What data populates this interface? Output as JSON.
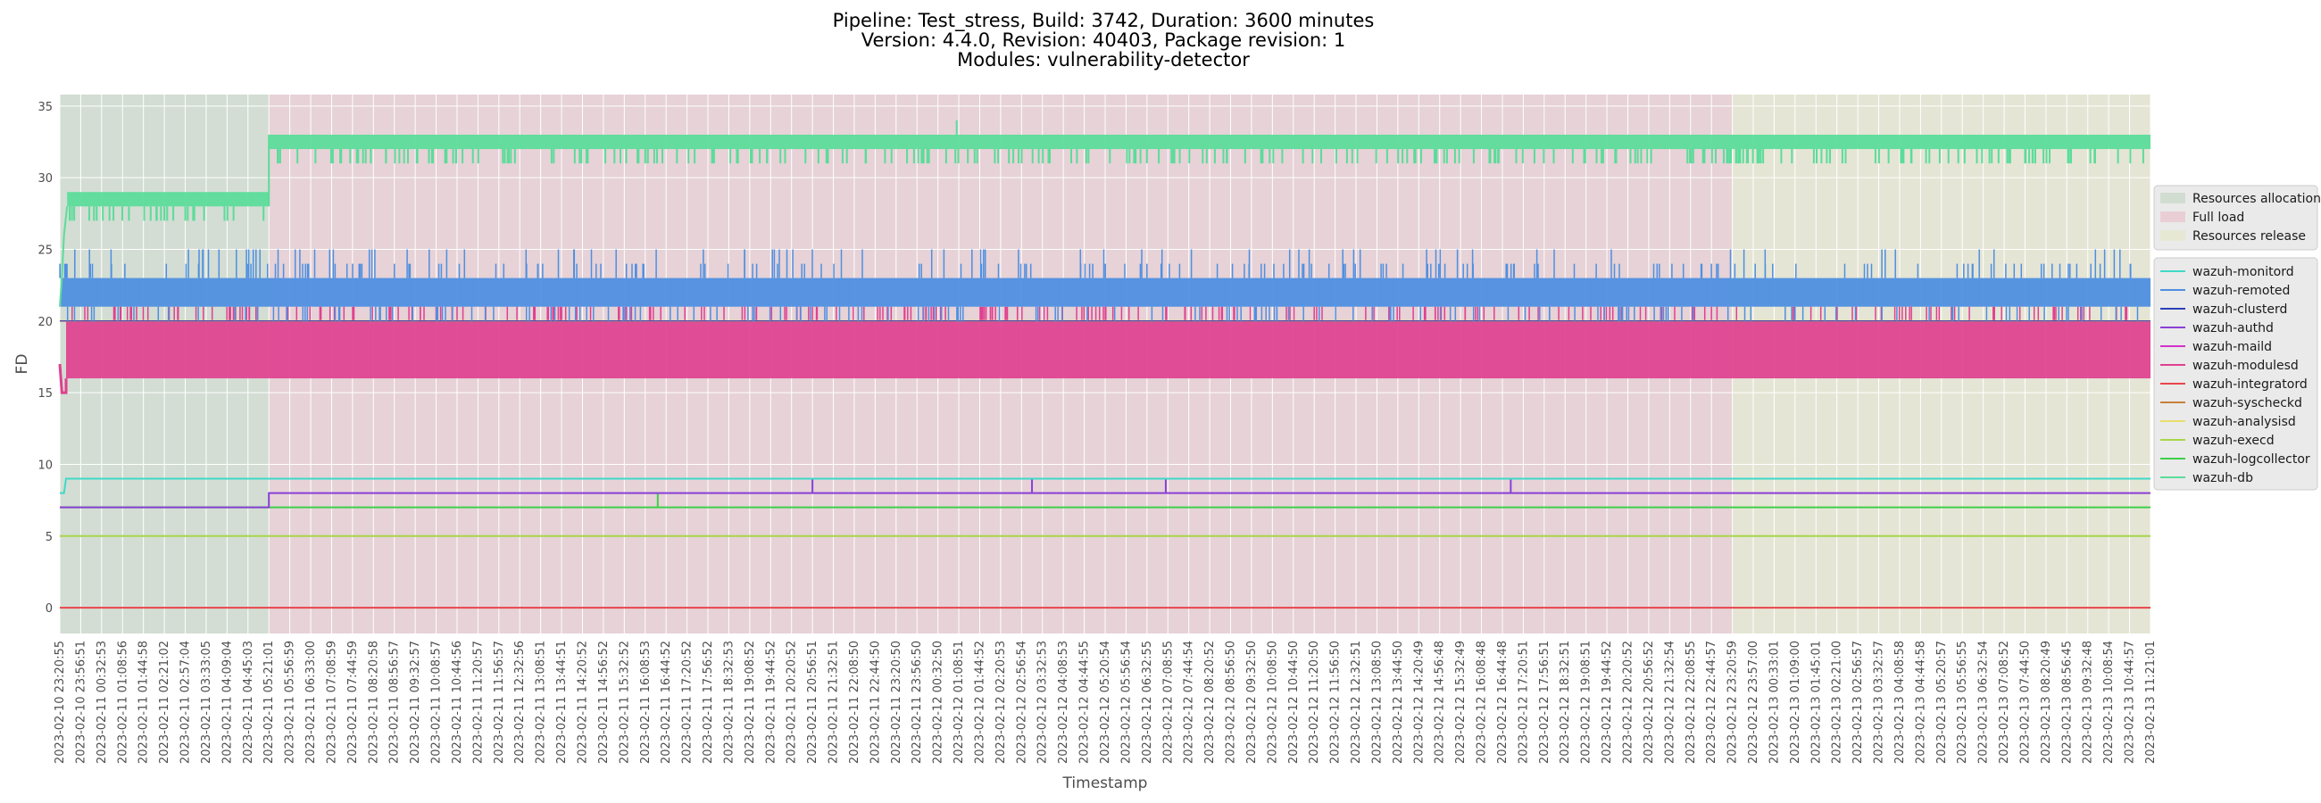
{
  "chart_data": {
    "type": "line",
    "title_lines": [
      "Pipeline: Test_stress, Build: 3742, Duration: 3600 minutes",
      "Version: 4.4.0, Revision: 40403, Package revision: 1",
      "Modules: vulnerability-detector"
    ],
    "xlabel": "Timestamp",
    "ylabel": "FD",
    "ylim": [
      -1.8,
      35.8
    ],
    "yticks": [
      0,
      5,
      10,
      15,
      20,
      25,
      30,
      35
    ],
    "grid": true,
    "x_ticks": [
      "2023-02-10 23:20:55",
      "2023-02-10 23:56:51",
      "2023-02-11 00:32:53",
      "2023-02-11 01:08:56",
      "2023-02-11 01:44:58",
      "2023-02-11 02:21:02",
      "2023-02-11 02:57:04",
      "2023-02-11 03:33:05",
      "2023-02-11 04:09:04",
      "2023-02-11 04:45:03",
      "2023-02-11 05:21:01",
      "2023-02-11 05:56:59",
      "2023-02-11 06:33:00",
      "2023-02-11 07:08:59",
      "2023-02-11 07:44:59",
      "2023-02-11 08:20:58",
      "2023-02-11 08:56:57",
      "2023-02-11 09:32:57",
      "2023-02-11 10:08:57",
      "2023-02-11 10:44:56",
      "2023-02-11 11:20:57",
      "2023-02-11 11:56:57",
      "2023-02-11 12:32:56",
      "2023-02-11 13:08:51",
      "2023-02-11 13:44:51",
      "2023-02-11 14:20:52",
      "2023-02-11 14:56:52",
      "2023-02-11 15:32:52",
      "2023-02-11 16:08:53",
      "2023-02-11 16:44:52",
      "2023-02-11 17:20:52",
      "2023-02-11 17:56:52",
      "2023-02-11 18:32:53",
      "2023-02-11 19:08:52",
      "2023-02-11 19:44:52",
      "2023-02-11 20:20:52",
      "2023-02-11 20:56:51",
      "2023-02-11 21:32:51",
      "2023-02-11 22:08:50",
      "2023-02-11 22:44:50",
      "2023-02-11 23:20:50",
      "2023-02-11 23:56:50",
      "2023-02-12 00:32:50",
      "2023-02-12 01:08:51",
      "2023-02-12 01:44:52",
      "2023-02-12 02:20:53",
      "2023-02-12 02:56:54",
      "2023-02-12 03:32:53",
      "2023-02-12 04:08:53",
      "2023-02-12 04:44:55",
      "2023-02-12 05:20:54",
      "2023-02-12 05:56:54",
      "2023-02-12 06:32:55",
      "2023-02-12 07:08:55",
      "2023-02-12 07:44:54",
      "2023-02-12 08:20:52",
      "2023-02-12 08:56:50",
      "2023-02-12 09:32:50",
      "2023-02-12 10:08:50",
      "2023-02-12 10:44:50",
      "2023-02-12 11:20:50",
      "2023-02-12 11:56:50",
      "2023-02-12 12:32:51",
      "2023-02-12 13:08:50",
      "2023-02-12 13:44:50",
      "2023-02-12 14:20:49",
      "2023-02-12 14:56:48",
      "2023-02-12 15:32:49",
      "2023-02-12 16:08:48",
      "2023-02-12 16:44:48",
      "2023-02-12 17:20:51",
      "2023-02-12 17:56:51",
      "2023-02-12 18:32:51",
      "2023-02-12 19:08:51",
      "2023-02-12 19:44:52",
      "2023-02-12 20:20:52",
      "2023-02-12 20:56:52",
      "2023-02-12 21:32:54",
      "2023-02-12 22:08:55",
      "2023-02-12 22:44:57",
      "2023-02-12 23:20:59",
      "2023-02-12 23:57:00",
      "2023-02-13 00:33:01",
      "2023-02-13 01:09:00",
      "2023-02-13 01:45:01",
      "2023-02-13 02:21:00",
      "2023-02-13 02:56:57",
      "2023-02-13 03:32:57",
      "2023-02-13 04:08:58",
      "2023-02-13 04:44:58",
      "2023-02-13 05:20:57",
      "2023-02-13 05:56:55",
      "2023-02-13 06:32:54",
      "2023-02-13 07:08:52",
      "2023-02-13 07:44:50",
      "2023-02-13 08:20:49",
      "2023-02-13 08:56:45",
      "2023-02-13 09:32:48",
      "2023-02-13 10:08:54",
      "2023-02-13 10:44:57",
      "2023-02-13 11:21:01"
    ],
    "phases": [
      {
        "name": "Resources allocation",
        "start_tick": 0,
        "end_tick": 10,
        "color": "#b3cfb3"
      },
      {
        "name": "Full load",
        "start_tick": 10,
        "end_tick": 80,
        "color": "#e8b0bc"
      },
      {
        "name": "Resources release",
        "start_tick": 80,
        "end_tick": 100,
        "color": "#e4e6b8"
      }
    ],
    "series": [
      {
        "name": "wazuh-monitord",
        "color": "#3fd9c8",
        "kind": "step",
        "points": [
          [
            0,
            8
          ],
          [
            0.2,
            8
          ],
          [
            0.3,
            9
          ],
          [
            100,
            9
          ]
        ]
      },
      {
        "name": "wazuh-remoted",
        "color": "#4f8fe0",
        "kind": "band",
        "low": 21,
        "high": 23,
        "spike": 25,
        "start_tick": 0.05
      },
      {
        "name": "wazuh-clusterd",
        "color": "#2c40b8",
        "kind": "step",
        "points": [
          [
            0,
            20
          ],
          [
            100,
            20
          ]
        ]
      },
      {
        "name": "wazuh-authd",
        "color": "#8a3fd6",
        "kind": "step",
        "points": [
          [
            0,
            7
          ],
          [
            10,
            7
          ],
          [
            10,
            8
          ],
          [
            100,
            8
          ]
        ],
        "spikes": [
          36,
          46.5,
          52.9,
          69.4
        ]
      },
      {
        "name": "wazuh-maild",
        "color": "#d233c8",
        "kind": "step",
        "points": [
          [
            0,
            20
          ],
          [
            100,
            20
          ]
        ]
      },
      {
        "name": "wazuh-modulesd",
        "color": "#e0408f",
        "kind": "band",
        "low": 16,
        "high": 20,
        "start_low": 15,
        "start_tick": 0.3
      },
      {
        "name": "wazuh-integratord",
        "color": "#e8454a",
        "kind": "step",
        "points": [
          [
            0,
            0
          ],
          [
            100,
            0
          ]
        ]
      },
      {
        "name": "wazuh-syscheckd",
        "color": "#c8803a",
        "kind": "step",
        "points": [
          [
            0,
            20
          ],
          [
            100,
            20
          ]
        ]
      },
      {
        "name": "wazuh-analysisd",
        "color": "#e8dd6a",
        "kind": "step",
        "points": [
          [
            0,
            20
          ],
          [
            100,
            20
          ]
        ]
      },
      {
        "name": "wazuh-execd",
        "color": "#a8d64a",
        "kind": "step",
        "points": [
          [
            0,
            5
          ],
          [
            100,
            5
          ]
        ]
      },
      {
        "name": "wazuh-logcollector",
        "color": "#3fcf4a",
        "kind": "step",
        "points": [
          [
            0,
            7
          ],
          [
            100,
            7
          ]
        ],
        "spikes": [
          28.6
        ]
      },
      {
        "name": "wazuh-db",
        "color": "#5cdc9a",
        "kind": "db",
        "segments": [
          [
            0,
            10,
            28,
            29,
            27
          ],
          [
            10,
            100,
            32,
            33,
            31
          ]
        ]
      }
    ]
  }
}
